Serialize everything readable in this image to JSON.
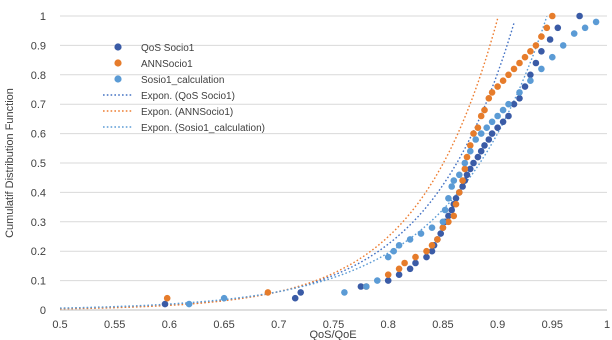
{
  "chart_data": {
    "type": "scatter",
    "xlabel": "QoS/QoE",
    "ylabel": "Cumulatif Distribution Function",
    "xlim": [
      0.5,
      1
    ],
    "ylim": [
      0,
      1
    ],
    "xticks": [
      "0.5",
      "0.55",
      "0.6",
      "0.65",
      "0.7",
      "0.75",
      "0.8",
      "0.85",
      "0.9",
      "0.95",
      "1"
    ],
    "yticks": [
      "0",
      "0.1",
      "0.2",
      "0.3",
      "0.4",
      "0.5",
      "0.6",
      "0.7",
      "0.8",
      "0.9",
      "1"
    ],
    "grid": {
      "horizontal": true,
      "vertical": false
    },
    "legend_position": "top-left",
    "series": [
      {
        "name": "QoS Socio1",
        "color": "#3a5ba6",
        "points": [
          [
            0.596,
            0.02
          ],
          [
            0.715,
            0.04
          ],
          [
            0.72,
            0.06
          ],
          [
            0.775,
            0.08
          ],
          [
            0.8,
            0.1
          ],
          [
            0.81,
            0.12
          ],
          [
            0.82,
            0.14
          ],
          [
            0.825,
            0.16
          ],
          [
            0.835,
            0.18
          ],
          [
            0.84,
            0.2
          ],
          [
            0.842,
            0.22
          ],
          [
            0.845,
            0.24
          ],
          [
            0.848,
            0.26
          ],
          [
            0.85,
            0.28
          ],
          [
            0.852,
            0.3
          ],
          [
            0.855,
            0.32
          ],
          [
            0.858,
            0.34
          ],
          [
            0.86,
            0.36
          ],
          [
            0.862,
            0.38
          ],
          [
            0.865,
            0.4
          ],
          [
            0.868,
            0.42
          ],
          [
            0.87,
            0.44
          ],
          [
            0.872,
            0.46
          ],
          [
            0.875,
            0.48
          ],
          [
            0.878,
            0.5
          ],
          [
            0.882,
            0.52
          ],
          [
            0.885,
            0.54
          ],
          [
            0.888,
            0.56
          ],
          [
            0.892,
            0.58
          ],
          [
            0.895,
            0.6
          ],
          [
            0.9,
            0.62
          ],
          [
            0.905,
            0.64
          ],
          [
            0.91,
            0.66
          ],
          [
            0.915,
            0.7
          ],
          [
            0.92,
            0.72
          ],
          [
            0.925,
            0.76
          ],
          [
            0.93,
            0.8
          ],
          [
            0.935,
            0.84
          ],
          [
            0.94,
            0.88
          ],
          [
            0.948,
            0.92
          ],
          [
            0.955,
            0.96
          ],
          [
            0.975,
            1.0
          ]
        ]
      },
      {
        "name": "ANNSocio1",
        "color": "#e67c2b",
        "points": [
          [
            0.598,
            0.04
          ],
          [
            0.69,
            0.06
          ],
          [
            0.78,
            0.08
          ],
          [
            0.8,
            0.12
          ],
          [
            0.81,
            0.14
          ],
          [
            0.815,
            0.16
          ],
          [
            0.825,
            0.18
          ],
          [
            0.835,
            0.2
          ],
          [
            0.84,
            0.22
          ],
          [
            0.845,
            0.24
          ],
          [
            0.85,
            0.28
          ],
          [
            0.855,
            0.3
          ],
          [
            0.86,
            0.32
          ],
          [
            0.862,
            0.36
          ],
          [
            0.865,
            0.4
          ],
          [
            0.868,
            0.44
          ],
          [
            0.87,
            0.48
          ],
          [
            0.872,
            0.52
          ],
          [
            0.875,
            0.56
          ],
          [
            0.878,
            0.6
          ],
          [
            0.882,
            0.62
          ],
          [
            0.885,
            0.66
          ],
          [
            0.888,
            0.68
          ],
          [
            0.892,
            0.72
          ],
          [
            0.895,
            0.74
          ],
          [
            0.9,
            0.76
          ],
          [
            0.905,
            0.78
          ],
          [
            0.91,
            0.8
          ],
          [
            0.915,
            0.82
          ],
          [
            0.92,
            0.84
          ],
          [
            0.925,
            0.86
          ],
          [
            0.93,
            0.88
          ],
          [
            0.935,
            0.9
          ],
          [
            0.94,
            0.93
          ],
          [
            0.945,
            0.96
          ],
          [
            0.95,
            1.0
          ]
        ]
      },
      {
        "name": "Sosio1_calculation",
        "color": "#5b9bd5",
        "points": [
          [
            0.618,
            0.02
          ],
          [
            0.65,
            0.04
          ],
          [
            0.76,
            0.06
          ],
          [
            0.78,
            0.08
          ],
          [
            0.79,
            0.1
          ],
          [
            0.8,
            0.18
          ],
          [
            0.805,
            0.2
          ],
          [
            0.81,
            0.22
          ],
          [
            0.82,
            0.24
          ],
          [
            0.83,
            0.26
          ],
          [
            0.84,
            0.28
          ],
          [
            0.85,
            0.3
          ],
          [
            0.852,
            0.34
          ],
          [
            0.855,
            0.38
          ],
          [
            0.858,
            0.42
          ],
          [
            0.86,
            0.44
          ],
          [
            0.865,
            0.46
          ],
          [
            0.87,
            0.5
          ],
          [
            0.875,
            0.54
          ],
          [
            0.88,
            0.58
          ],
          [
            0.885,
            0.6
          ],
          [
            0.89,
            0.62
          ],
          [
            0.895,
            0.64
          ],
          [
            0.9,
            0.66
          ],
          [
            0.905,
            0.68
          ],
          [
            0.91,
            0.7
          ],
          [
            0.92,
            0.74
          ],
          [
            0.93,
            0.78
          ],
          [
            0.94,
            0.82
          ],
          [
            0.95,
            0.86
          ],
          [
            0.96,
            0.9
          ],
          [
            0.97,
            0.94
          ],
          [
            0.98,
            0.96
          ],
          [
            0.99,
            0.98
          ]
        ]
      }
    ],
    "trendlines": [
      {
        "name": "Expon. (QoS Socio1)",
        "color": "#4472c4",
        "a": 8e-06,
        "b": 12.8
      },
      {
        "name": "Expon. (ANNSocio1)",
        "color": "#ed7d31",
        "a": 4e-06,
        "b": 13.8
      },
      {
        "name": "Expon. (Sosio1_calculation)",
        "color": "#5b9bd5",
        "a": 2.3e-05,
        "b": 11.3
      }
    ]
  }
}
